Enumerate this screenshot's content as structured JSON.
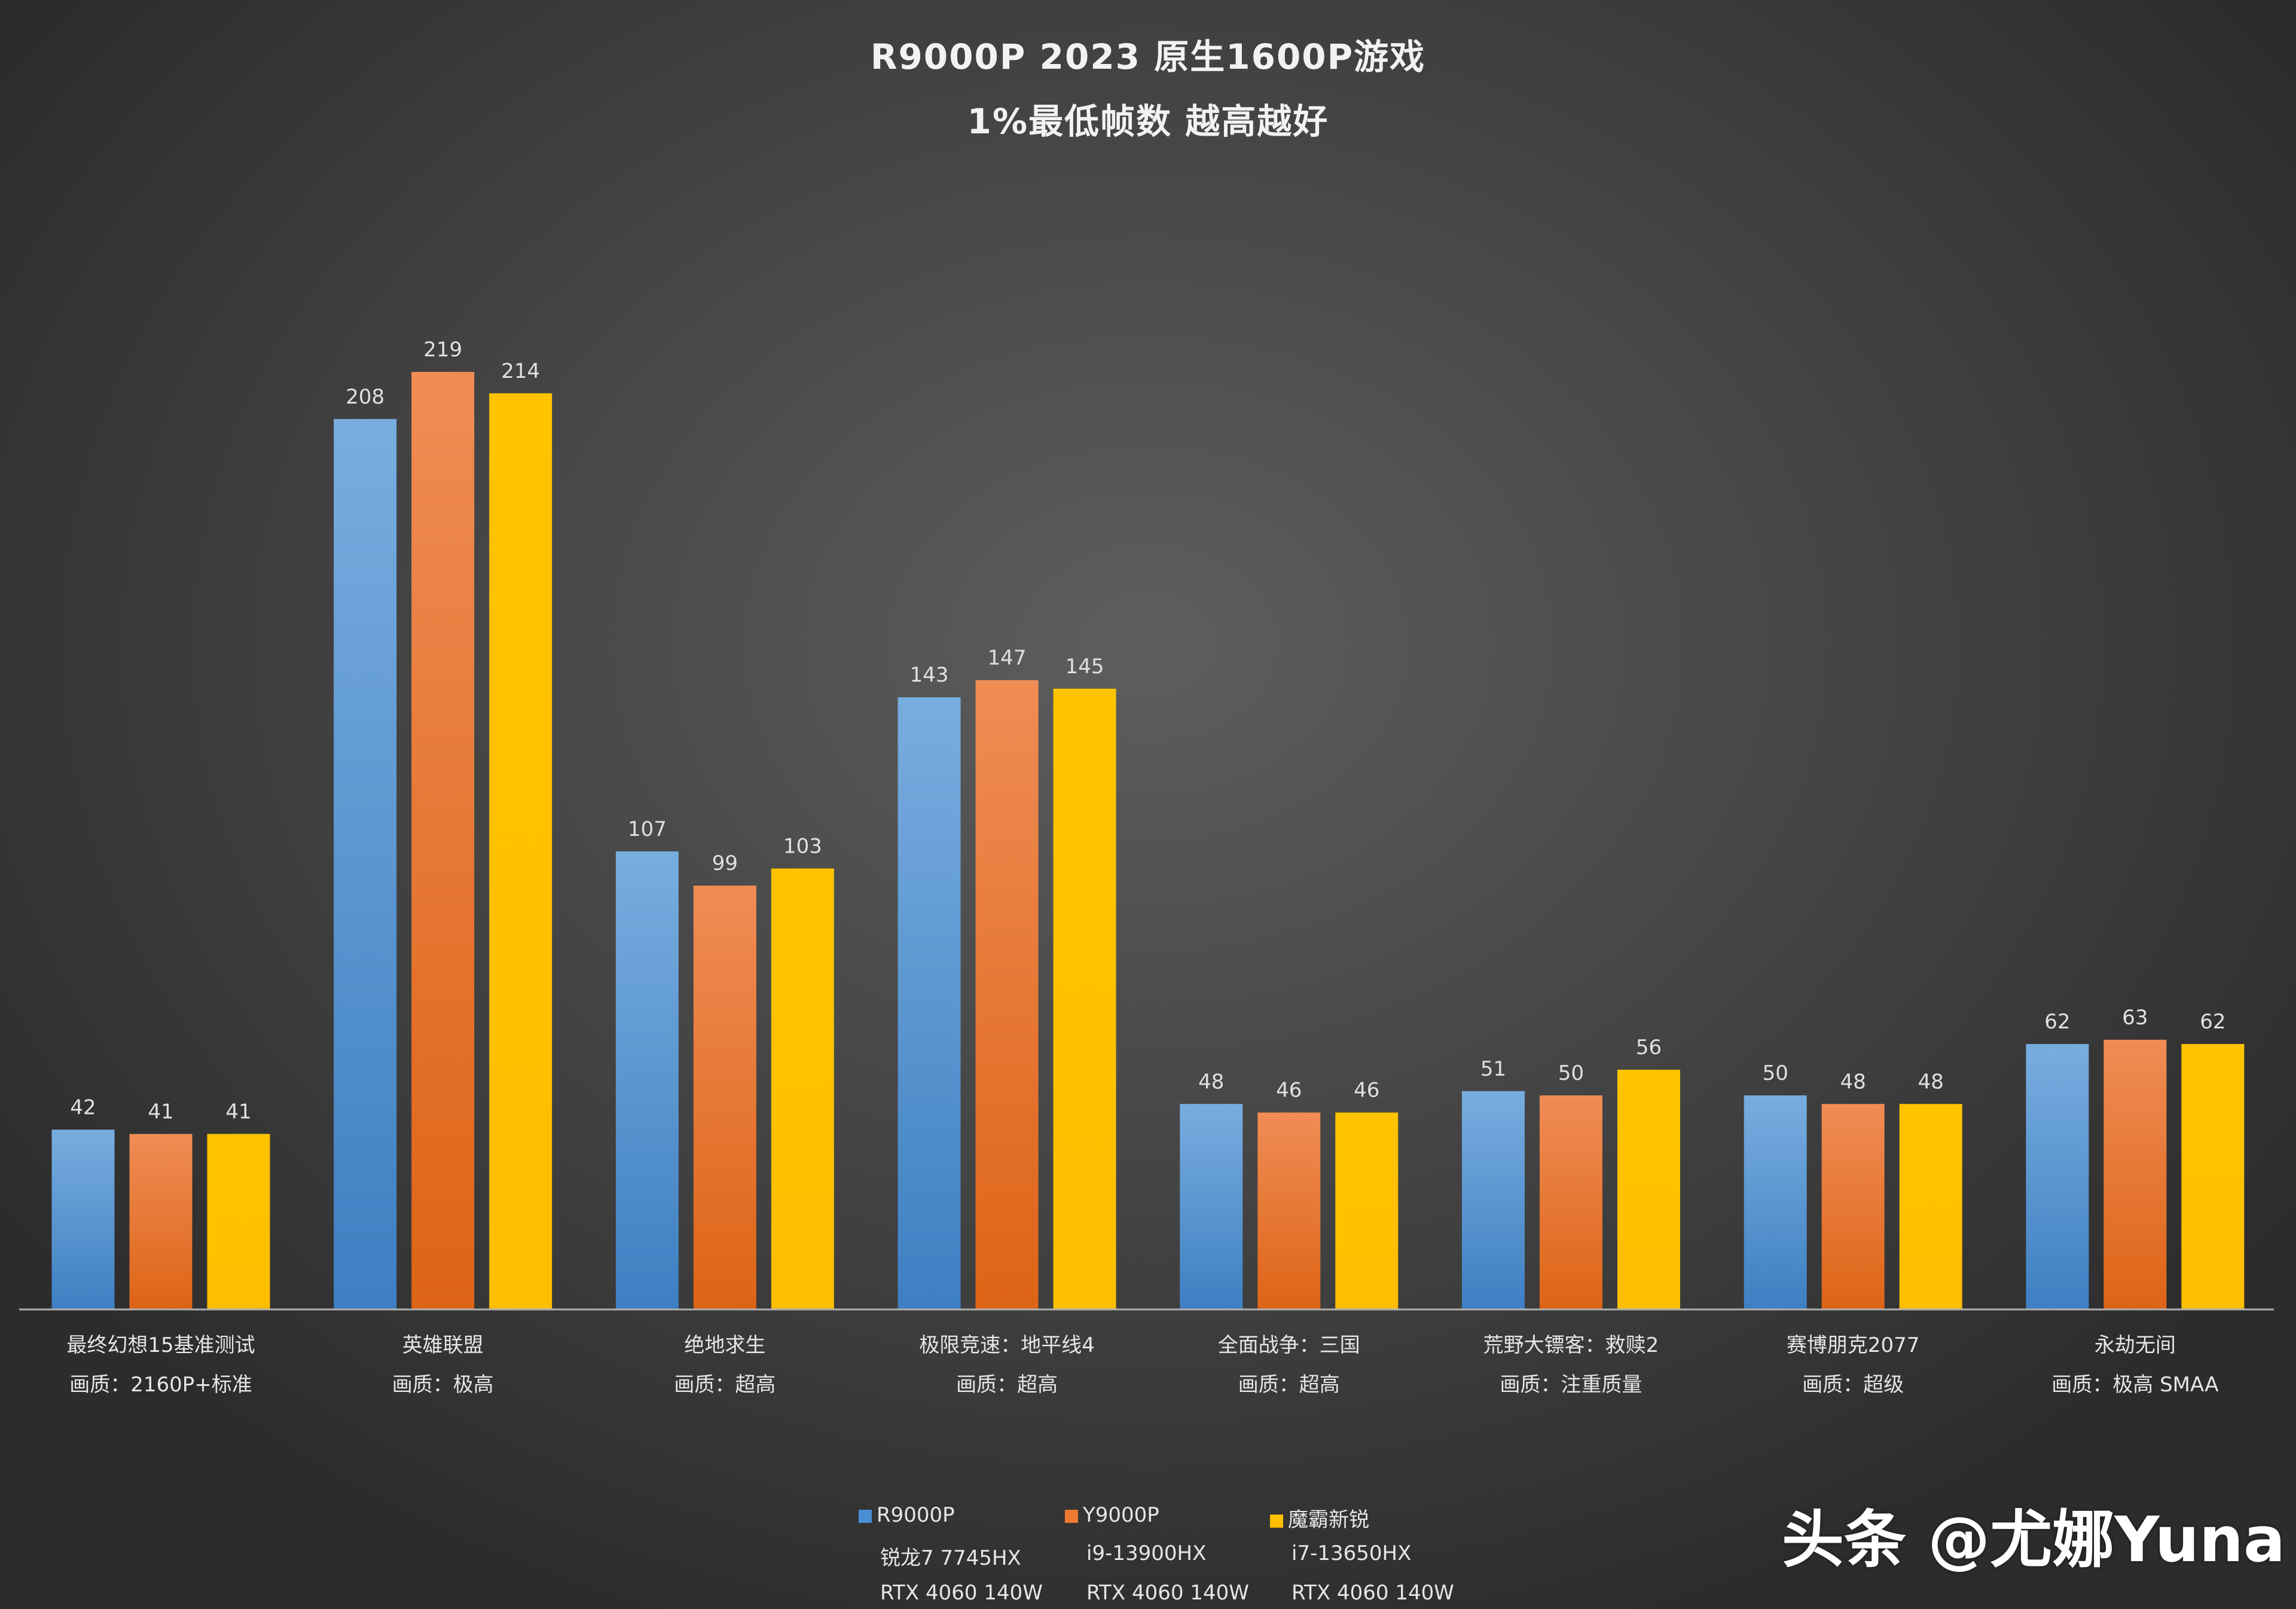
{
  "chart_data": {
    "type": "bar",
    "title": "R9000P 2023 原生1600P游戏",
    "subtitle": "1%最低帧数 越高越好",
    "categories": [
      {
        "name": "最终幻想15基准测试",
        "quality": "画质：2160P+标准"
      },
      {
        "name": "英雄联盟",
        "quality": "画质：极高"
      },
      {
        "name": "绝地求生",
        "quality": "画质：超高"
      },
      {
        "name": "极限竞速：地平线4",
        "quality": "画质：超高"
      },
      {
        "name": "全面战争：三国",
        "quality": "画质：超高"
      },
      {
        "name": "荒野大镖客：救赎2",
        "quality": "画质：注重质量"
      },
      {
        "name": "赛博朋克2077",
        "quality": "画质：超级"
      },
      {
        "name": "永劫无间",
        "quality": "画质：极高 SMAA"
      }
    ],
    "series": [
      {
        "name": "R9000P",
        "cpu": "锐龙7 7745HX",
        "gpu": "RTX 4060 140W",
        "color": "#4a8fd6",
        "values": [
          42,
          208,
          107,
          143,
          48,
          51,
          50,
          62
        ]
      },
      {
        "name": "Y9000P",
        "cpu": "i9-13900HX",
        "gpu": "RTX 4060 140W",
        "color": "#ee7a30",
        "values": [
          41,
          219,
          99,
          147,
          46,
          50,
          48,
          63
        ]
      },
      {
        "name": "魔霸新锐",
        "cpu": "i7-13650HX",
        "gpu": "RTX 4060 140W",
        "color": "#ffc000",
        "values": [
          41,
          214,
          103,
          145,
          46,
          56,
          48,
          62
        ]
      }
    ],
    "ylim": [
      0,
      219
    ],
    "grid": false,
    "legend_position": "bottom"
  },
  "watermark": "头条 @尤娜Yuna"
}
